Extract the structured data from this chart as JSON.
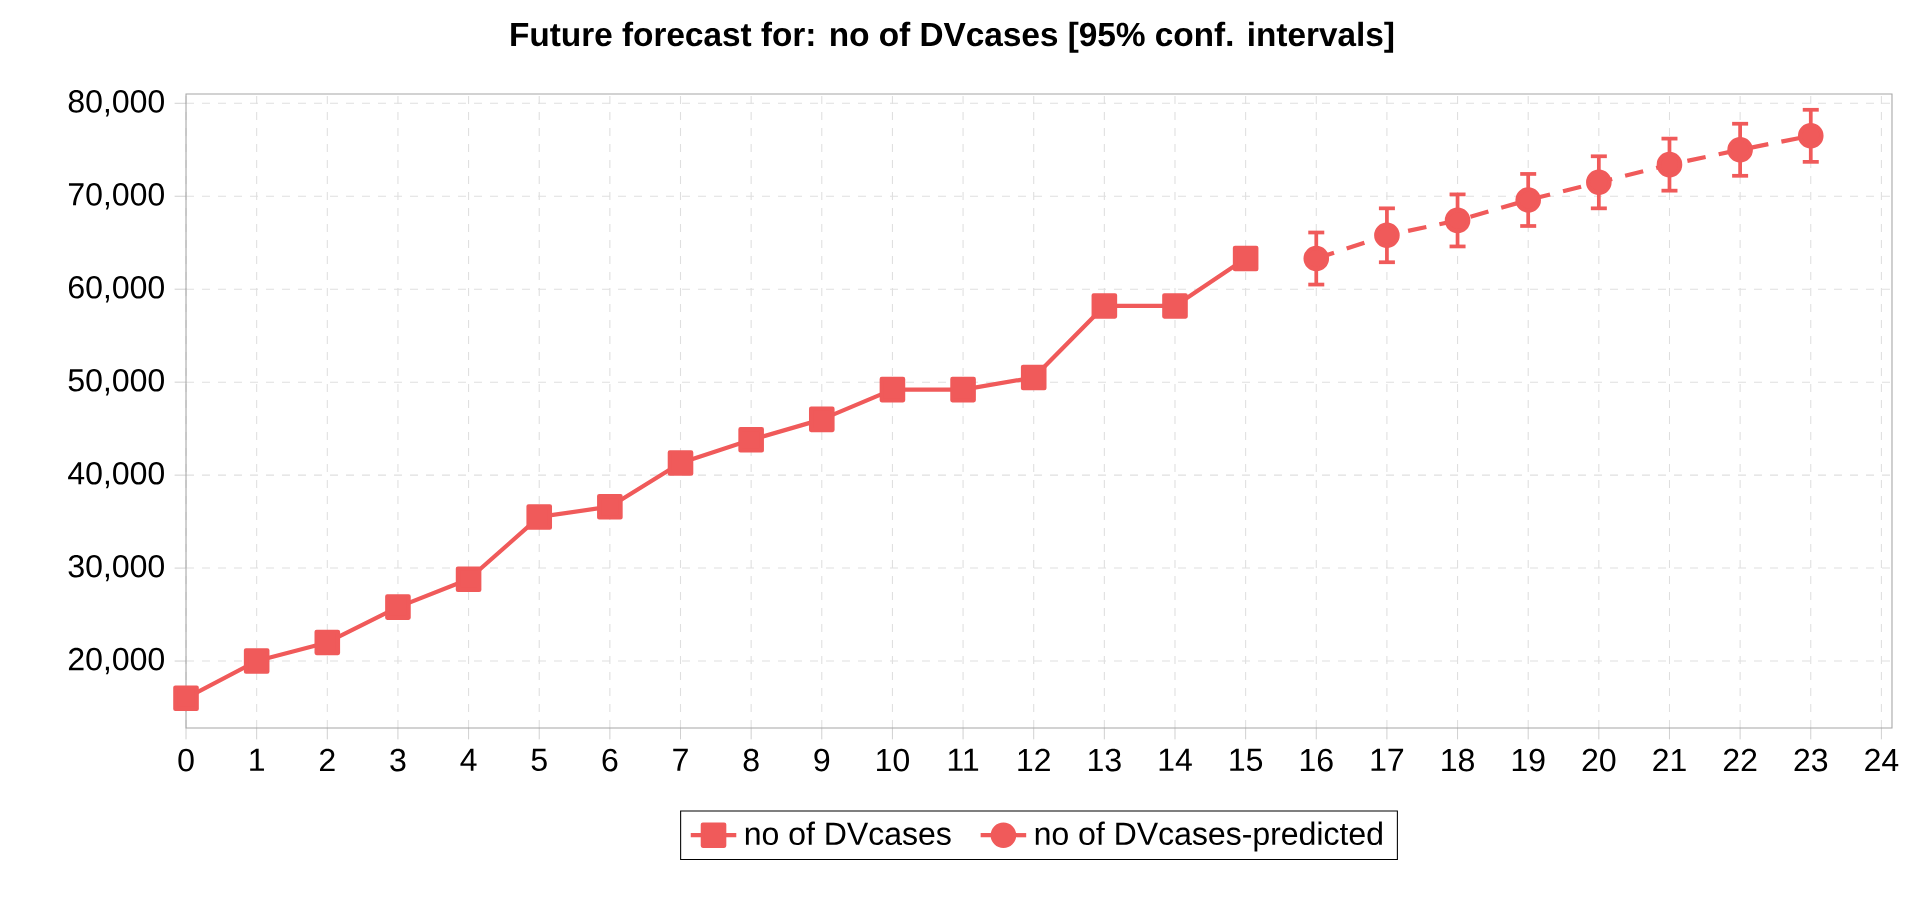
{
  "chart_data": {
    "type": "line",
    "title": "Future forecast for: no of DVcases [95% conf. intervals]",
    "series": [
      {
        "name": "no of DVcases",
        "color": "#f05a5a",
        "marker": "square",
        "line_style": "solid",
        "x": [
          0,
          1,
          2,
          3,
          4,
          5,
          6,
          7,
          8,
          9,
          10,
          11,
          12,
          13,
          14,
          15
        ],
        "values": [
          16000,
          20000,
          22000,
          25800,
          28800,
          35500,
          36600,
          41300,
          43800,
          46000,
          49200,
          49200,
          50500,
          58200,
          58200,
          63300
        ]
      },
      {
        "name": "no of DVcases-predicted",
        "color": "#f05a5a",
        "marker": "circle",
        "line_style": "dashed",
        "x": [
          16,
          17,
          18,
          19,
          20,
          21,
          22,
          23
        ],
        "values": [
          63300,
          65800,
          67400,
          69600,
          71500,
          73400,
          75000,
          76500
        ],
        "errors": [
          2800,
          2900,
          2800,
          2800,
          2800,
          2800,
          2800,
          2800
        ]
      }
    ],
    "xlim": [
      0,
      24.15
    ],
    "ylim": [
      12800,
      81000
    ],
    "xticks": [
      0,
      1,
      2,
      3,
      4,
      5,
      6,
      7,
      8,
      9,
      10,
      11,
      12,
      13,
      14,
      15,
      16,
      17,
      18,
      19,
      20,
      21,
      22,
      23,
      24
    ],
    "yticks": [
      {
        "value": 20000,
        "label": "20,000"
      },
      {
        "value": 30000,
        "label": "30,000"
      },
      {
        "value": 40000,
        "label": "40,000"
      },
      {
        "value": 50000,
        "label": "50,000"
      },
      {
        "value": 60000,
        "label": "60,000"
      },
      {
        "value": 70000,
        "label": "70,000"
      },
      {
        "value": 80000,
        "label": "80,000"
      }
    ],
    "grid": true,
    "legend": "bottom"
  }
}
